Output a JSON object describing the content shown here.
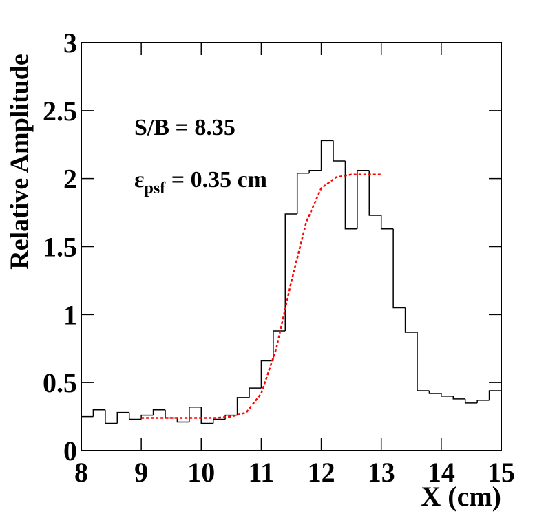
{
  "chart_data": {
    "type": "histogram",
    "ylabel": "Relative Amplitude",
    "xlabel": "X (cm)",
    "annotations": [
      "S/B = 8.35",
      {
        "symbol": "ε",
        "sub": "psf",
        "rest": " = 0.35 cm"
      }
    ],
    "bins": [
      8.0,
      8.2,
      8.4,
      8.6,
      8.8,
      9.0,
      9.2,
      9.4,
      9.6,
      9.8,
      10.0,
      10.2,
      10.4,
      10.6,
      10.8,
      11.0,
      11.2,
      11.4,
      11.6,
      11.8,
      12.0,
      12.2,
      12.4,
      12.6,
      12.8,
      13.0,
      13.2,
      13.4,
      13.6,
      13.8,
      14.0,
      14.2,
      14.4,
      14.6,
      14.8,
      15.0
    ],
    "counts": [
      0.25,
      0.3,
      0.2,
      0.28,
      0.23,
      0.26,
      0.3,
      0.24,
      0.21,
      0.32,
      0.2,
      0.23,
      0.26,
      0.39,
      0.46,
      0.66,
      0.88,
      1.74,
      2.04,
      2.06,
      2.28,
      2.13,
      1.63,
      2.06,
      1.73,
      1.63,
      1.05,
      0.87,
      0.44,
      0.42,
      0.4,
      0.38,
      0.35,
      0.37,
      0.44
    ],
    "color": "#000000",
    "fit": {
      "color": "#ff0000",
      "x": [
        9.0,
        9.25,
        9.5,
        9.75,
        10.0,
        10.25,
        10.5,
        10.75,
        11.0,
        11.25,
        11.5,
        11.75,
        12.0,
        12.25,
        12.5,
        12.75,
        13.0
      ],
      "values": [
        0.24,
        0.24,
        0.24,
        0.24,
        0.24,
        0.24,
        0.25,
        0.28,
        0.42,
        0.75,
        1.24,
        1.68,
        1.93,
        2.01,
        2.03,
        2.03,
        2.03
      ]
    },
    "xlim": [
      8,
      15
    ],
    "xticks": [
      8,
      9,
      10,
      11,
      12,
      13,
      14,
      15
    ],
    "ylim": [
      0,
      3
    ],
    "yticks": [
      0,
      0.5,
      1,
      1.5,
      2,
      2.5,
      3
    ]
  }
}
